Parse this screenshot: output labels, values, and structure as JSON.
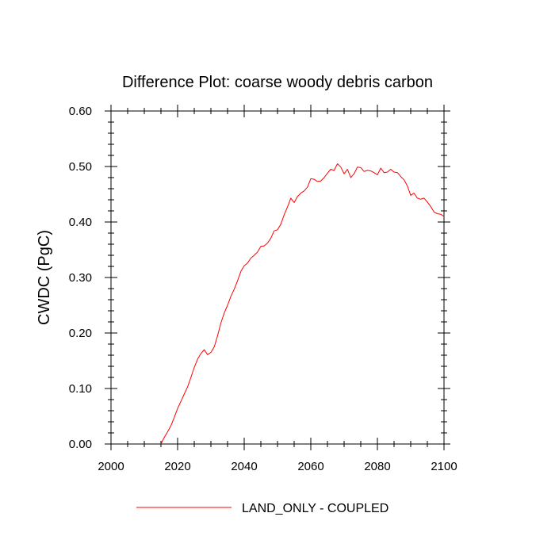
{
  "chart_data": {
    "type": "line",
    "title": "Difference Plot: coarse woody debris carbon",
    "xlabel": "",
    "ylabel": "CWDC  (PgC)",
    "xlim": [
      2000,
      2100
    ],
    "ylim": [
      0.0,
      0.6
    ],
    "x_ticks": [
      2000,
      2020,
      2040,
      2060,
      2080,
      2100
    ],
    "x_tick_labels": [
      "2000",
      "2020",
      "2040",
      "2060",
      "2080",
      "2100"
    ],
    "y_ticks": [
      0.0,
      0.1,
      0.2,
      0.3,
      0.4,
      0.5,
      0.6
    ],
    "y_tick_labels": [
      "0.00",
      "0.10",
      "0.20",
      "0.30",
      "0.40",
      "0.50",
      "0.60"
    ],
    "grid": false,
    "legend_position": "bottom",
    "series": [
      {
        "name": "LAND_ONLY - COUPLED",
        "color": "#ff0000",
        "x": [
          2015,
          2016,
          2017,
          2018,
          2019,
          2020,
          2021,
          2022,
          2023,
          2024,
          2025,
          2026,
          2027,
          2028,
          2029,
          2030,
          2031,
          2032,
          2033,
          2034,
          2035,
          2036,
          2037,
          2038,
          2039,
          2040,
          2041,
          2042,
          2043,
          2044,
          2045,
          2046,
          2047,
          2048,
          2049,
          2050,
          2051,
          2052,
          2053,
          2054,
          2055,
          2056,
          2057,
          2058,
          2059,
          2060,
          2061,
          2062,
          2063,
          2064,
          2065,
          2066,
          2067,
          2068,
          2069,
          2070,
          2071,
          2072,
          2073,
          2074,
          2075,
          2076,
          2077,
          2078,
          2079,
          2080,
          2081,
          2082,
          2083,
          2084,
          2085,
          2086,
          2087,
          2088,
          2089,
          2090,
          2091,
          2092,
          2093,
          2094,
          2095,
          2096,
          2097,
          2098,
          2099,
          2100
        ],
        "values": [
          0.0,
          0.012,
          0.022,
          0.033,
          0.048,
          0.064,
          0.077,
          0.09,
          0.103,
          0.12,
          0.138,
          0.153,
          0.163,
          0.17,
          0.161,
          0.165,
          0.175,
          0.195,
          0.218,
          0.236,
          0.25,
          0.266,
          0.279,
          0.294,
          0.311,
          0.321,
          0.326,
          0.335,
          0.34,
          0.346,
          0.356,
          0.357,
          0.362,
          0.371,
          0.384,
          0.386,
          0.396,
          0.413,
          0.427,
          0.443,
          0.435,
          0.446,
          0.452,
          0.456,
          0.463,
          0.478,
          0.477,
          0.473,
          0.474,
          0.48,
          0.488,
          0.495,
          0.493,
          0.505,
          0.499,
          0.487,
          0.495,
          0.48,
          0.487,
          0.499,
          0.498,
          0.491,
          0.493,
          0.492,
          0.489,
          0.485,
          0.497,
          0.489,
          0.49,
          0.495,
          0.49,
          0.489,
          0.482,
          0.476,
          0.465,
          0.448,
          0.452,
          0.443,
          0.441,
          0.443,
          0.436,
          0.428,
          0.418,
          0.415,
          0.414,
          0.41
        ]
      }
    ]
  }
}
